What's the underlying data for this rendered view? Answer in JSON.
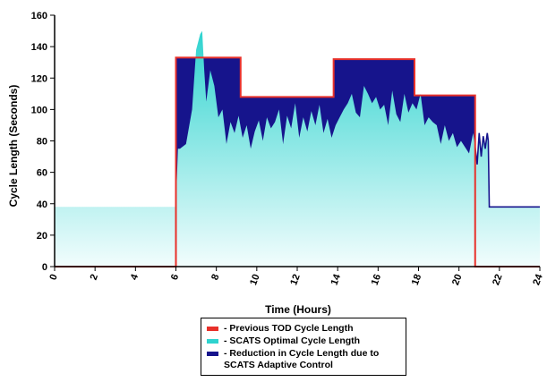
{
  "chart_data": {
    "type": "area",
    "xlabel": "Time (Hours)",
    "ylabel": "Cycle Length (Seconds)",
    "xlim": [
      0,
      24
    ],
    "ylim": [
      0,
      160
    ],
    "x_ticks": [
      0,
      2,
      4,
      6,
      8,
      10,
      12,
      14,
      16,
      18,
      20,
      22,
      24
    ],
    "y_ticks": [
      0,
      20,
      40,
      60,
      80,
      100,
      120,
      140,
      160
    ],
    "grid": false,
    "legend_position": "bottom-center",
    "series": [
      {
        "name": "- Previous TOD Cycle Length",
        "color": "#e8302a",
        "kind": "step-line",
        "x": [
          0,
          6,
          6,
          9.2,
          9.2,
          13.8,
          13.8,
          17.8,
          17.8,
          20.8,
          20.8,
          24
        ],
        "y": [
          0,
          0,
          133,
          133,
          108,
          108,
          132,
          132,
          109,
          109,
          0,
          0
        ]
      },
      {
        "name": "- SCATS Optimal Cycle Length",
        "color": "#2ed3cf",
        "kind": "area",
        "x": [
          0,
          6,
          6.1,
          6.2,
          6.5,
          6.8,
          7.0,
          7.2,
          7.3,
          7.4,
          7.5,
          7.7,
          7.9,
          8.1,
          8.3,
          8.5,
          8.7,
          8.9,
          9.1,
          9.3,
          9.5,
          9.7,
          9.9,
          10.1,
          10.3,
          10.5,
          10.7,
          10.9,
          11.1,
          11.3,
          11.5,
          11.7,
          11.9,
          12.1,
          12.3,
          12.5,
          12.7,
          12.9,
          13.1,
          13.3,
          13.5,
          13.7,
          13.9,
          14.1,
          14.3,
          14.5,
          14.7,
          14.9,
          15.1,
          15.3,
          15.5,
          15.7,
          15.9,
          16.1,
          16.3,
          16.5,
          16.7,
          16.9,
          17.1,
          17.3,
          17.5,
          17.7,
          17.9,
          18.1,
          18.3,
          18.5,
          18.7,
          18.9,
          19.1,
          19.3,
          19.5,
          19.7,
          19.9,
          20.1,
          20.3,
          20.5,
          20.7,
          20.8,
          20.9,
          21.0,
          21.1,
          21.2,
          21.3,
          21.4,
          21.45,
          21.5,
          24
        ],
        "y": [
          38,
          38,
          75,
          75,
          78,
          100,
          138,
          148,
          150,
          125,
          105,
          125,
          115,
          95,
          100,
          78,
          92,
          85,
          96,
          82,
          90,
          75,
          86,
          93,
          80,
          95,
          88,
          92,
          100,
          78,
          96,
          88,
          104,
          82,
          95,
          86,
          99,
          90,
          103,
          85,
          94,
          82,
          90,
          95,
          100,
          104,
          110,
          98,
          95,
          115,
          110,
          104,
          108,
          100,
          103,
          90,
          112,
          97,
          92,
          110,
          98,
          104,
          100,
          110,
          90,
          95,
          92,
          90,
          78,
          90,
          80,
          85,
          76,
          80,
          76,
          72,
          85,
          76,
          65,
          85,
          70,
          83,
          75,
          85,
          80,
          38,
          38
        ]
      },
      {
        "name": "- Reduction in Cycle Length due to SCATS Adaptive Control",
        "color": "#16148c",
        "kind": "area-between"
      }
    ]
  }
}
